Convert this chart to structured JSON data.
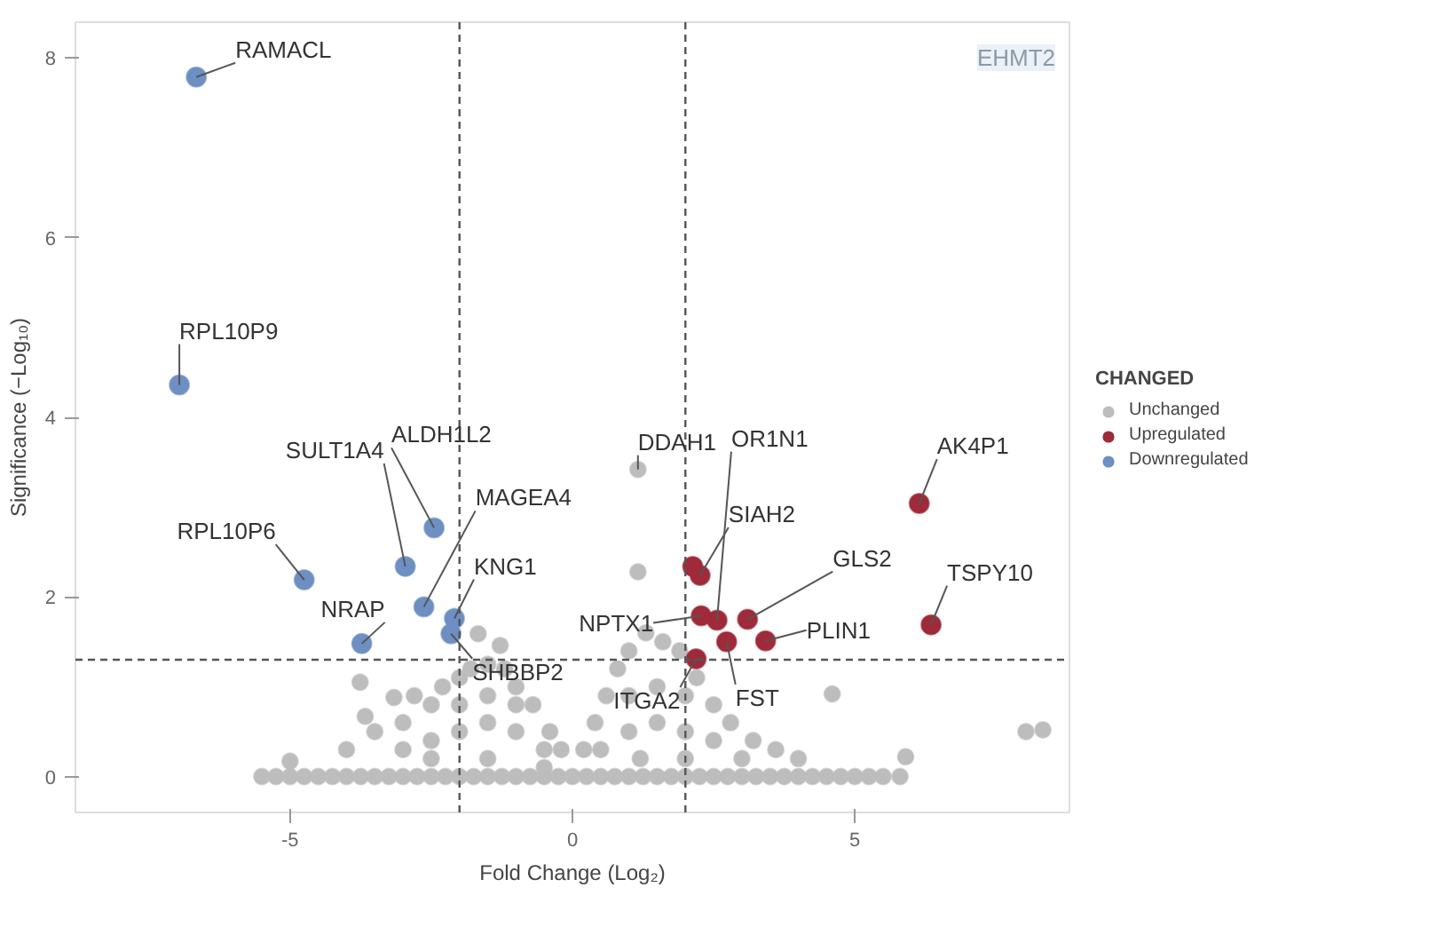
{
  "chart_data": {
    "type": "scatter",
    "xlabel": "Fold Change (Log₂)",
    "ylabel": "Significance (−Log₁₀)",
    "legend_title": "CHANGED",
    "legend": "right",
    "grid": false,
    "marker": "circle",
    "xlim": [
      -8.8,
      8.8
    ],
    "ylim": [
      -0.4,
      8.4
    ],
    "xticks": [
      -5,
      0,
      5
    ],
    "yticks": [
      0,
      2,
      4,
      6,
      8
    ],
    "ref_lines": [
      {
        "axis": "x",
        "value": -2,
        "line_style": "dashed",
        "color": "#555555"
      },
      {
        "axis": "x",
        "value": 2,
        "line_style": "dashed",
        "color": "#555555"
      },
      {
        "axis": "y",
        "value": 1.3,
        "line_style": "dashed",
        "color": "#555555"
      }
    ],
    "series": [
      {
        "name": "Unchanged",
        "color": "#bdbdbd",
        "x": [
          -5.5,
          -5.25,
          -5.0,
          -4.75,
          -4.5,
          -4.25,
          -4.0,
          -3.75,
          -3.5,
          -3.25,
          -3.0,
          -2.75,
          -2.5,
          -2.25,
          -2.0,
          -1.75,
          -1.5,
          -1.25,
          -1.0,
          -0.75,
          -0.5,
          -0.25,
          0.0,
          0.25,
          0.5,
          0.75,
          1.0,
          1.25,
          1.5,
          1.75,
          2.0,
          2.25,
          2.5,
          2.75,
          3.0,
          3.25,
          3.5,
          3.75,
          4.0,
          4.25,
          4.5,
          4.75,
          5.0,
          5.25,
          5.5,
          5.8,
          -4.0,
          -3.5,
          -3.0,
          -2.8,
          -2.5,
          -2.3,
          -2.0,
          -1.8,
          -1.5,
          -1.2,
          -1.0,
          -0.7,
          -0.4,
          -0.2,
          -3.0,
          -2.5,
          -2.0,
          -1.5,
          -1.0,
          -0.5,
          -2.0,
          -1.5,
          -1.0,
          -2.5,
          -1.5,
          -0.5,
          0.2,
          0.4,
          0.6,
          0.8,
          1.0,
          1.3,
          1.6,
          1.9,
          2.2,
          2.5,
          2.8,
          3.2,
          3.6,
          4.0,
          0.5,
          1.0,
          1.5,
          2.0,
          1.0,
          1.5,
          2.0,
          2.5,
          1.2,
          2.0,
          3.0,
          -3.76,
          -3.16,
          -3.67,
          -5.0,
          -1.67,
          -1.28,
          4.6,
          5.9,
          8.03,
          8.33,
          1.16,
          1.16
        ],
        "values": [
          0,
          0,
          0,
          0,
          0,
          0,
          0,
          0,
          0,
          0,
          0,
          0,
          0,
          0,
          0,
          0,
          0,
          0,
          0,
          0,
          0,
          0,
          0,
          0,
          0,
          0,
          0,
          0,
          0,
          0,
          0,
          0,
          0,
          0,
          0,
          0,
          0,
          0,
          0,
          0,
          0,
          0,
          0,
          0,
          0,
          0,
          0.3,
          0.5,
          0.6,
          0.9,
          0.8,
          1.0,
          1.1,
          1.2,
          1.25,
          1.2,
          1.0,
          0.8,
          0.5,
          0.3,
          0.3,
          0.4,
          0.5,
          0.6,
          0.5,
          0.3,
          0.8,
          0.9,
          0.8,
          0.2,
          0.2,
          0.1,
          0.3,
          0.6,
          0.9,
          1.2,
          1.4,
          1.6,
          1.5,
          1.4,
          1.1,
          0.8,
          0.6,
          0.4,
          0.3,
          0.2,
          0.3,
          0.5,
          0.6,
          0.5,
          0.9,
          1.0,
          0.9,
          0.4,
          0.2,
          0.2,
          0.2,
          1.05,
          0.88,
          0.67,
          0.17,
          1.59,
          1.46,
          0.92,
          0.22,
          0.5,
          0.52,
          2.28,
          3.42
        ]
      },
      {
        "name": "Upregulated",
        "color": "#9e2a3a",
        "x": [
          6.14,
          2.13,
          2.26,
          2.56,
          2.28,
          3.1,
          3.42,
          2.73,
          2.19,
          6.35
        ],
        "values": [
          3.04,
          2.34,
          2.24,
          1.74,
          1.79,
          1.75,
          1.51,
          1.5,
          1.31,
          1.69
        ]
      },
      {
        "name": "Downregulated",
        "color": "#6e8fc2",
        "x": [
          -6.66,
          -6.96,
          -4.75,
          -2.96,
          -2.45,
          -2.63,
          -2.09,
          -2.15,
          -3.73
        ],
        "values": [
          7.79,
          4.36,
          2.19,
          2.34,
          2.77,
          1.89,
          1.76,
          1.59,
          1.48
        ]
      }
    ],
    "annotations": [
      {
        "text": "RAMACL",
        "x": -6.66,
        "y": 7.79
      },
      {
        "text": "RPL10P9",
        "x": -6.96,
        "y": 4.36
      },
      {
        "text": "SULT1A4",
        "x": -2.96,
        "y": 2.34
      },
      {
        "text": "ALDH1L2",
        "x": -2.45,
        "y": 2.77
      },
      {
        "text": "MAGEA4",
        "x": -2.63,
        "y": 1.89
      },
      {
        "text": "KNG1",
        "x": -2.09,
        "y": 1.76
      },
      {
        "text": "RPL10P6",
        "x": -4.75,
        "y": 2.19
      },
      {
        "text": "NRAP",
        "x": -3.73,
        "y": 1.48
      },
      {
        "text": "SHBBP2",
        "x": -2.15,
        "y": 1.59
      },
      {
        "text": "NPTX1",
        "x": 2.28,
        "y": 1.79
      },
      {
        "text": "ITGA2",
        "x": 2.19,
        "y": 1.31
      },
      {
        "text": "DDAH1",
        "x": 1.16,
        "y": 3.42
      },
      {
        "text": "OR1N1",
        "x": 2.56,
        "y": 1.74
      },
      {
        "text": "SIAH2",
        "x": 2.26,
        "y": 2.24
      },
      {
        "text": "GLS2",
        "x": 3.1,
        "y": 1.75
      },
      {
        "text": "PLIN1",
        "x": 3.42,
        "y": 1.51
      },
      {
        "text": "FST",
        "x": 2.73,
        "y": 1.5
      },
      {
        "text": "TSPY10",
        "x": 6.35,
        "y": 1.69
      },
      {
        "text": "AK4P1",
        "x": 6.14,
        "y": 3.04
      },
      "EHMT2"
    ]
  }
}
